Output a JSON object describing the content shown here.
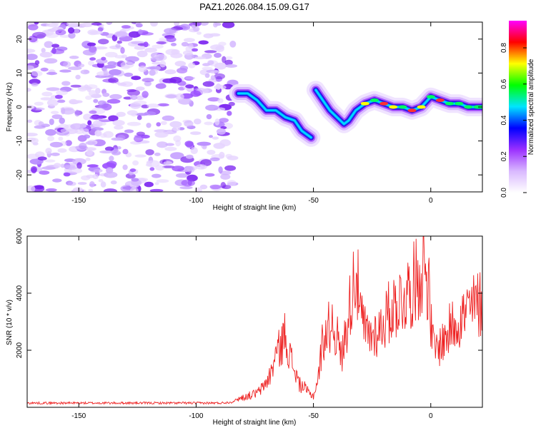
{
  "title": "PAZ1.2026.084.15.09.G17",
  "colors": {
    "line": "#ee2222",
    "frame": "#000000",
    "colormap": [
      "#ffffff",
      "#d9b8ff",
      "#9b30ff",
      "#0000ff",
      "#00e5ff",
      "#00ff00",
      "#ffff00",
      "#ff0000",
      "#ff00ff"
    ]
  },
  "chart_data": [
    {
      "type": "heatmap",
      "name": "spectrogram",
      "xlabel": "Height of straight line (km)",
      "ylabel": "Frequency (Hz)",
      "xlim": [
        -172,
        22
      ],
      "ylim": [
        -25,
        25
      ],
      "xticks": [
        -150,
        -100,
        -50,
        0
      ],
      "yticks": [
        -20,
        -10,
        0,
        10,
        20
      ],
      "signal_ridge": {
        "x": [
          -82,
          -78,
          -74,
          -70,
          -66,
          -62,
          -58,
          -55,
          -51,
          -49,
          -46,
          -43,
          -40,
          -37,
          -35,
          -32,
          -28,
          -24,
          -20,
          -16,
          -12,
          -8,
          -4,
          0,
          4,
          8,
          12,
          16,
          20,
          22
        ],
        "y": [
          4,
          4,
          2,
          -1,
          -1,
          -3,
          -4,
          -7,
          -9,
          5,
          2,
          -1,
          -3,
          -5,
          -4,
          -1,
          1,
          2,
          1,
          0,
          0,
          -1,
          0,
          3,
          2,
          1,
          1,
          0,
          0,
          0
        ]
      },
      "colorbar": {
        "label": "Normalized spectral amplitude",
        "range": [
          0,
          0.95
        ],
        "ticks": [
          "0.0",
          "0.2",
          "0.4",
          "0.6",
          "0.8"
        ],
        "tick_values": [
          0,
          0.2,
          0.4,
          0.6,
          0.8
        ]
      }
    },
    {
      "type": "line",
      "name": "snr",
      "xlabel": "Height of straight line (km)",
      "ylabel": "SNR (10 * v/v)",
      "xlim": [
        -172,
        22
      ],
      "ylim": [
        0,
        6000
      ],
      "xticks": [
        -150,
        -100,
        -50,
        0
      ],
      "yticks": [
        2000,
        4000,
        6000
      ],
      "series": [
        {
          "name": "SNR",
          "x": [
            -172,
            -150,
            -120,
            -100,
            -90,
            -85,
            -82,
            -80,
            -77,
            -74,
            -72,
            -70,
            -68,
            -66,
            -64,
            -62,
            -60,
            -58,
            -56,
            -54,
            -52,
            -50,
            -48,
            -46,
            -44,
            -42,
            -40,
            -38,
            -36,
            -34,
            -32,
            -30,
            -28,
            -26,
            -24,
            -22,
            -20,
            -18,
            -16,
            -14,
            -12,
            -10,
            -8,
            -6,
            -4,
            -2,
            -1,
            0,
            1,
            2,
            4,
            6,
            8,
            10,
            12,
            14,
            16,
            18,
            20,
            22
          ],
          "y": [
            150,
            150,
            150,
            150,
            150,
            180,
            300,
            350,
            420,
            500,
            650,
            900,
            1200,
            1900,
            2100,
            2600,
            1800,
            1300,
            800,
            700,
            500,
            400,
            1000,
            2400,
            2700,
            3000,
            2500,
            1700,
            2800,
            3800,
            5000,
            3200,
            2700,
            2500,
            2600,
            2700,
            3000,
            3300,
            3500,
            3700,
            3800,
            4000,
            4200,
            4500,
            4800,
            5000,
            4300,
            3000,
            2200,
            2000,
            2200,
            2400,
            2700,
            3000,
            3100,
            3200,
            3400,
            3500,
            3600,
            3700
          ]
        }
      ]
    }
  ]
}
